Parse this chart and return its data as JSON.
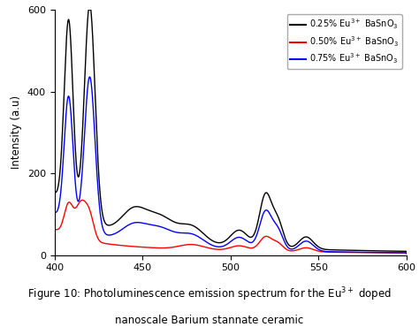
{
  "xlim": [
    400,
    600
  ],
  "ylim": [
    0,
    600
  ],
  "ylabel": "Intensity (a.u)",
  "xticks": [
    400,
    450,
    500,
    550,
    600
  ],
  "yticks": [
    0,
    200,
    400,
    600
  ],
  "caption_line1": "Figure 10: Photoluminescence emission spectrum for the Eu$^{3+}$ doped",
  "caption_line2": "nanoscale Barium stannate ceramic",
  "legend": [
    {
      "label": "0.25% Eu$^{3+}$ BaSnO$_3$",
      "color": "black"
    },
    {
      "label": "0.50% Eu$^{3+}$ BaSnO$_3$",
      "color": "red"
    },
    {
      "label": "0.75% Eu$^{3+}$ BaSnO$_3$",
      "color": "blue"
    }
  ],
  "background": "#ffffff"
}
